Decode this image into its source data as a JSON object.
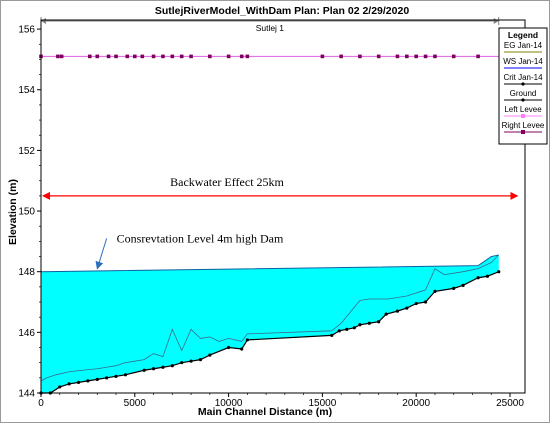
{
  "chart_data": {
    "type": "line",
    "title": "SutlejRiverModel_WithDam    Plan: Plan 02   2/29/2020",
    "xlabel": "Main Channel Distance (m)",
    "ylabel": "Elevation (m)",
    "xlim": [
      0,
      25800
    ],
    "ylim": [
      144,
      156.3
    ],
    "xticks": [
      0,
      5000,
      10000,
      15000,
      20000,
      25000
    ],
    "yticks": [
      144,
      146,
      148,
      150,
      152,
      154,
      156
    ],
    "reach_label": "Sutlej 1",
    "reach_range": [
      0,
      24400
    ],
    "water_surface": {
      "x": [
        0,
        24400
      ],
      "y": [
        148.0,
        148.0
      ],
      "end_bump_x": [
        23300,
        24000,
        24400
      ],
      "end_bump_y": [
        148.2,
        148.5,
        148.55
      ]
    },
    "ground": {
      "x": [
        0,
        500,
        1000,
        1500,
        2000,
        2500,
        3000,
        3500,
        4000,
        4500,
        5500,
        6000,
        6500,
        7000,
        7500,
        8000,
        8500,
        9000,
        10000,
        10700,
        11000,
        15500,
        15900,
        16300,
        16700,
        17000,
        17500,
        18000,
        18400,
        19000,
        19500,
        20000,
        20500,
        21000,
        22000,
        22500,
        23300,
        23800,
        24400
      ],
      "y": [
        144.0,
        144.0,
        144.2,
        144.3,
        144.35,
        144.4,
        144.45,
        144.5,
        144.55,
        144.6,
        144.75,
        144.8,
        144.85,
        144.9,
        145.0,
        145.05,
        145.1,
        145.25,
        145.5,
        145.45,
        145.75,
        145.9,
        146.05,
        146.1,
        146.15,
        146.25,
        146.3,
        146.35,
        146.6,
        146.7,
        146.8,
        146.95,
        147.0,
        147.35,
        147.45,
        147.55,
        147.8,
        147.85,
        148.0
      ]
    },
    "thalweg_profile": {
      "x": [
        0,
        300,
        800,
        1500,
        2200,
        3000,
        3500,
        4000,
        4500,
        5500,
        6000,
        6500,
        7000,
        7500,
        8000,
        8500,
        9000,
        9500,
        10000,
        10700,
        11000,
        15500,
        16000,
        17000,
        17500,
        18500,
        19500,
        20500,
        21000,
        21500,
        22500,
        23300,
        24000,
        24400
      ],
      "y": [
        144.4,
        144.5,
        144.6,
        144.7,
        144.75,
        144.8,
        144.85,
        144.9,
        145.0,
        145.1,
        145.3,
        145.2,
        146.1,
        145.4,
        146.1,
        145.8,
        145.85,
        145.7,
        145.8,
        145.7,
        145.95,
        146.05,
        146.3,
        147.05,
        147.1,
        147.1,
        147.2,
        147.4,
        148.1,
        147.9,
        148.0,
        148.1,
        148.3,
        148.55
      ]
    },
    "levee_elevation": 155.1,
    "levee_markers_x": [
      0,
      900,
      1100,
      2600,
      3000,
      3600,
      4000,
      4600,
      5000,
      5400,
      6000,
      6500,
      7000,
      7500,
      8000,
      9000,
      10000,
      10700,
      11000,
      15000,
      16000,
      17000,
      18000,
      19000,
      19500,
      20000,
      20500,
      21000,
      22000,
      23300
    ],
    "legend": [
      "EG Jan-14",
      "WS Jan-14",
      "Crit Jan-14",
      "Ground",
      "Left Levee",
      "Right Levee"
    ],
    "legend_title": "Legend",
    "legend_position": "top-right",
    "annotations": {
      "backwater": "Backwater Effect 25km",
      "conservation": "Consrevtation Level 4m high Dam"
    },
    "backwater_arrow": {
      "x_start": 0,
      "x_end": 25500,
      "y": 150.5
    },
    "conservation_arrow": {
      "x_from": 3500,
      "y_from": 149.1,
      "x_to": 3000,
      "y_to": 148.1
    },
    "colors": {
      "water_fill": "#00ffff",
      "ground": "#000000",
      "levee_line": "#e060e0",
      "levee_marker": "#800060",
      "backwater_arrow": "#ff0000",
      "conservation_arrow": "#2f6fbf",
      "reach_bar": "#808080"
    },
    "grid": false
  }
}
